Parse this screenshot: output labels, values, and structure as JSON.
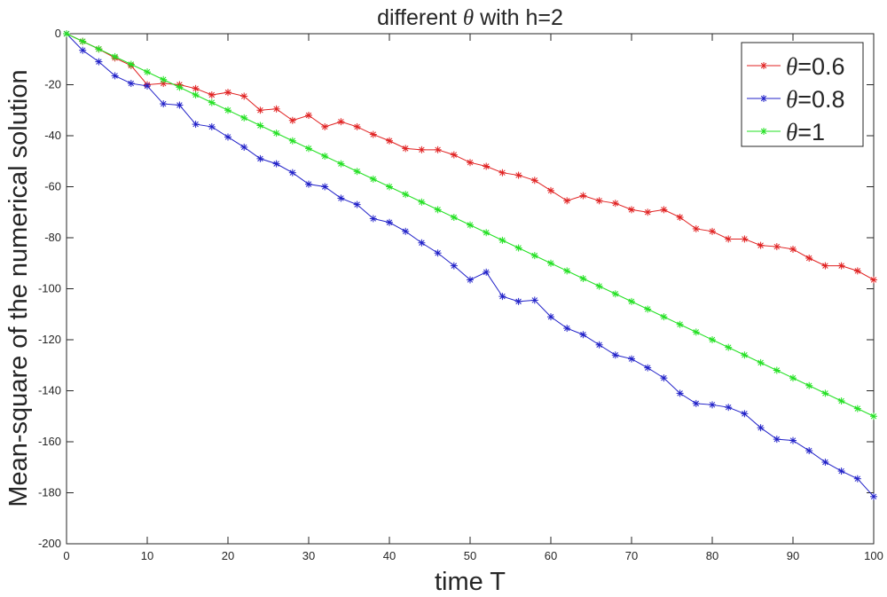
{
  "chart_data": {
    "type": "line",
    "title": {
      "before": "different ",
      "symbol": "θ",
      "after": " with h=2"
    },
    "xlabel": "time T",
    "ylabel": "Mean-square of the numerical solution",
    "xlim": [
      0,
      100
    ],
    "ylim": [
      -200,
      0
    ],
    "xticks": [
      0,
      10,
      20,
      30,
      40,
      50,
      60,
      70,
      80,
      90,
      100
    ],
    "yticks": [
      0,
      -20,
      -40,
      -60,
      -80,
      -100,
      -120,
      -140,
      -160,
      -180,
      -200
    ],
    "grid": false,
    "legend_position": "top-right",
    "x": [
      0,
      2,
      4,
      6,
      8,
      10,
      12,
      14,
      16,
      18,
      20,
      22,
      24,
      26,
      28,
      30,
      32,
      34,
      36,
      38,
      40,
      42,
      44,
      46,
      48,
      50,
      52,
      54,
      56,
      58,
      60,
      62,
      64,
      66,
      68,
      70,
      72,
      74,
      76,
      78,
      80,
      82,
      84,
      86,
      88,
      90,
      92,
      94,
      96,
      98,
      100
    ],
    "series": [
      {
        "name": "θ=0.6",
        "symbol": "θ",
        "suffix": "=0.6",
        "color": "#e02020",
        "values": [
          0,
          -3,
          -6,
          -9.5,
          -12.5,
          -20,
          -19.5,
          -20,
          -21.5,
          -24,
          -23,
          -24.5,
          -30,
          -29.5,
          -34,
          -32,
          -36.5,
          -34.5,
          -36.5,
          -39.5,
          -42,
          -45,
          -45.5,
          -45.5,
          -47.5,
          -50.5,
          -52,
          -54.5,
          -55.5,
          -57.5,
          -61.5,
          -65.5,
          -63.5,
          -65.5,
          -66.5,
          -69,
          -70,
          -69,
          -72,
          -76.5,
          -77.5,
          -80.5,
          -80.5,
          -83,
          -83.5,
          -84.5,
          -88,
          -91,
          -91,
          -93,
          -96.5
        ]
      },
      {
        "name": "θ=0.8",
        "symbol": "θ",
        "suffix": "=0.8",
        "color": "#2020c8",
        "values": [
          0,
          -6.5,
          -11,
          -16.5,
          -19.5,
          -20.5,
          -27.5,
          -28,
          -35.5,
          -36.5,
          -40.5,
          -44.5,
          -49,
          -51,
          -54.5,
          -59,
          -60,
          -64.5,
          -67,
          -72.5,
          -74,
          -77.5,
          -82,
          -86,
          -91,
          -96.5,
          -93.5,
          -103,
          -105,
          -104.5,
          -111,
          -115.5,
          -118,
          -122,
          -126,
          -127.5,
          -131,
          -135,
          -141,
          -145,
          -145.5,
          -146.5,
          -149,
          -154.5,
          -159,
          -159.5,
          -163.5,
          -168,
          -171.5,
          -174.5,
          -181.5
        ]
      },
      {
        "name": "θ=1",
        "symbol": "θ",
        "suffix": "=1",
        "color": "#22e022",
        "values": [
          0,
          -3,
          -6,
          -9,
          -12,
          -15,
          -18,
          -21,
          -24,
          -27,
          -30,
          -33,
          -36,
          -39,
          -42,
          -45,
          -48,
          -51,
          -54,
          -57,
          -60,
          -63,
          -66,
          -69,
          -72,
          -75,
          -78,
          -81,
          -84,
          -87,
          -90,
          -93,
          -96,
          -99,
          -102,
          -105,
          -108,
          -111,
          -114,
          -117,
          -120,
          -123,
          -126,
          -129,
          -132,
          -135,
          -138,
          -141,
          -144,
          -147,
          -150
        ]
      }
    ]
  }
}
